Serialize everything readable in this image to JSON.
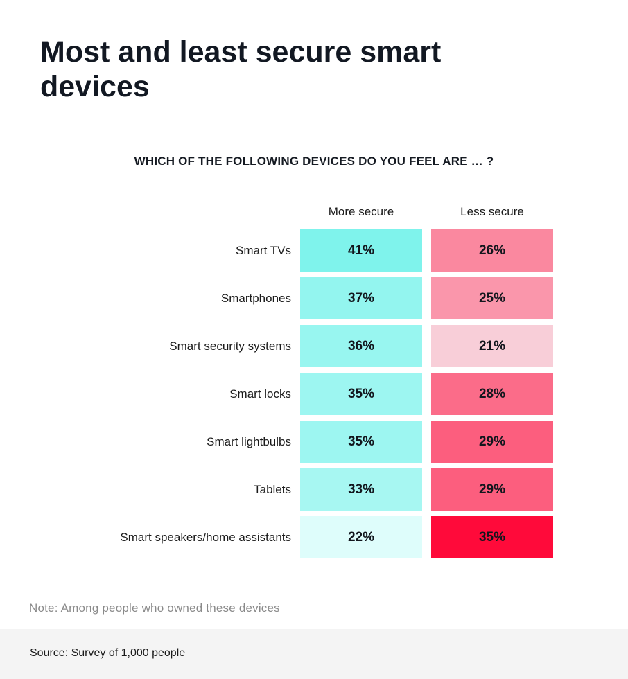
{
  "chart_data": {
    "type": "heatmap",
    "title": "Most and least secure smart devices",
    "subtitle": "WHICH OF THE FOLLOWING DEVICES DO YOU FEEL ARE … ?",
    "columns": [
      "More secure",
      "Less secure"
    ],
    "rows": [
      "Smart TVs",
      "Smartphones",
      "Smart security systems",
      "Smart locks",
      "Smart lightbulbs",
      "Tablets",
      "Smart speakers/home assistants"
    ],
    "series": [
      {
        "name": "More secure",
        "values": [
          41,
          37,
          36,
          35,
          35,
          33,
          22
        ],
        "color": "#7ff3ec"
      },
      {
        "name": "Less secure",
        "values": [
          26,
          25,
          21,
          28,
          29,
          29,
          35
        ],
        "color": "#ff0a3a"
      }
    ],
    "value_suffix": "%"
  },
  "note": "Note: Among people who owned these devices",
  "source": "Source: Survey of 1,000 people"
}
